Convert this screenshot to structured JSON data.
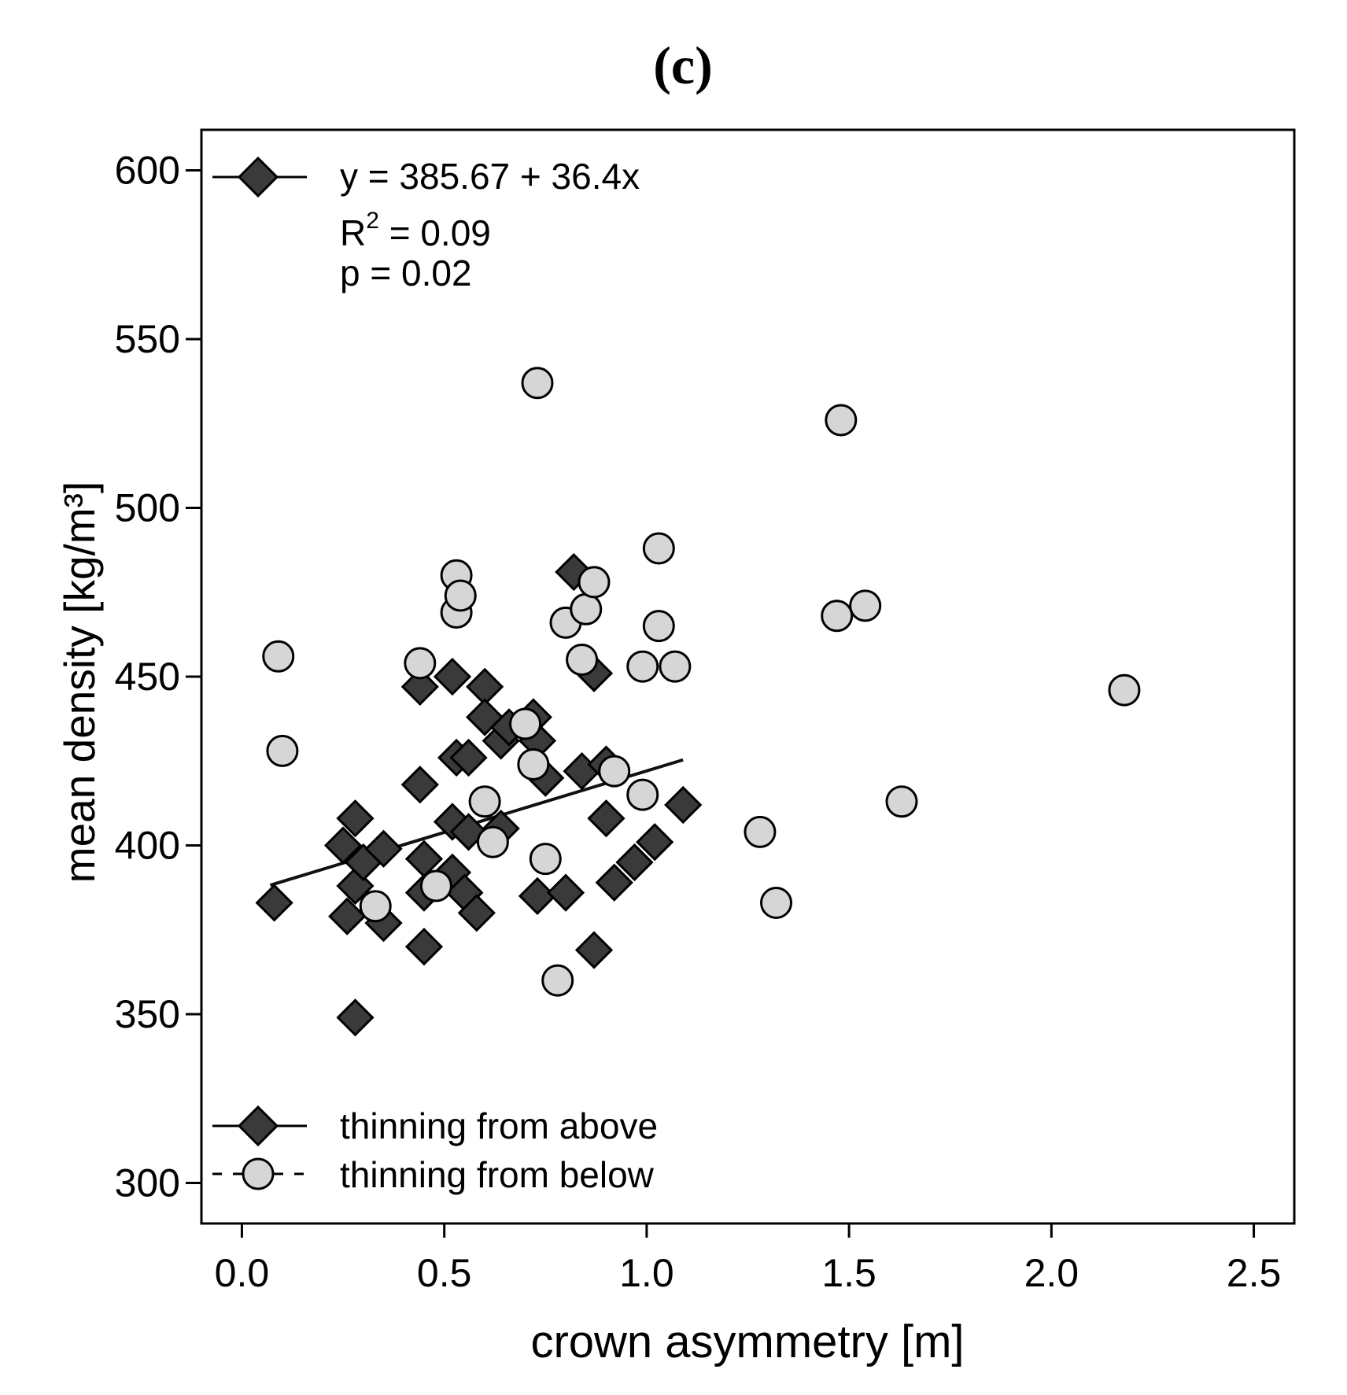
{
  "chart_data": {
    "type": "scatter",
    "panel_label": "(c)",
    "xlabel": "crown asymmetry [m]",
    "ylabel": "mean density [kg/m³]",
    "xlim": [
      -0.1,
      2.6
    ],
    "ylim": [
      288,
      612
    ],
    "x_ticks": [
      0.0,
      0.5,
      1.0,
      1.5,
      2.0,
      2.5
    ],
    "x_tick_labels": [
      "0.0",
      "0.5",
      "1.0",
      "1.5",
      "2.0",
      "2.5"
    ],
    "y_ticks": [
      300,
      350,
      400,
      450,
      500,
      550,
      600
    ],
    "y_tick_labels": [
      "300",
      "350",
      "400",
      "450",
      "500",
      "550",
      "600"
    ],
    "grid": false,
    "annotation": {
      "equation": "y = 385.67 + 36.4x",
      "r2_prefix": "R",
      "r2_sup": "2",
      "r2_value": " = 0.09",
      "p_value": "p = 0.02"
    },
    "legend": {
      "placement": "bottom-left",
      "entries": [
        {
          "label": "thinning from above",
          "marker": "diamond",
          "color": "#3a3a3a",
          "line": "solid"
        },
        {
          "label": "thinning from below",
          "marker": "circle",
          "color": "#d6d6d6",
          "line": "dashed"
        }
      ]
    },
    "series": [
      {
        "name": "thinning from above",
        "marker": "diamond",
        "fill": "#3a3a3a",
        "fit": {
          "intercept": 385.67,
          "slope": 36.4,
          "x_range": [
            0.07,
            1.09
          ]
        },
        "points": [
          [
            0.08,
            383
          ],
          [
            0.25,
            400
          ],
          [
            0.26,
            379
          ],
          [
            0.28,
            408
          ],
          [
            0.28,
            388
          ],
          [
            0.28,
            349
          ],
          [
            0.3,
            395
          ],
          [
            0.35,
            377
          ],
          [
            0.35,
            399
          ],
          [
            0.44,
            447
          ],
          [
            0.44,
            418
          ],
          [
            0.45,
            386
          ],
          [
            0.45,
            370
          ],
          [
            0.45,
            396
          ],
          [
            0.52,
            450
          ],
          [
            0.52,
            407
          ],
          [
            0.52,
            392
          ],
          [
            0.53,
            426
          ],
          [
            0.55,
            386
          ],
          [
            0.56,
            426
          ],
          [
            0.56,
            404
          ],
          [
            0.58,
            380
          ],
          [
            0.6,
            447
          ],
          [
            0.6,
            438
          ],
          [
            0.64,
            405
          ],
          [
            0.64,
            431
          ],
          [
            0.66,
            435
          ],
          [
            0.72,
            438
          ],
          [
            0.73,
            385
          ],
          [
            0.73,
            431
          ],
          [
            0.75,
            420
          ],
          [
            0.8,
            386
          ],
          [
            0.82,
            481
          ],
          [
            0.84,
            422
          ],
          [
            0.87,
            451
          ],
          [
            0.87,
            369
          ],
          [
            0.9,
            424
          ],
          [
            0.9,
            408
          ],
          [
            0.92,
            389
          ],
          [
            0.97,
            395
          ],
          [
            1.02,
            401
          ],
          [
            1.09,
            412
          ]
        ]
      },
      {
        "name": "thinning from below",
        "marker": "circle",
        "fill": "#d6d6d6",
        "points": [
          [
            0.09,
            456
          ],
          [
            0.1,
            428
          ],
          [
            0.33,
            382
          ],
          [
            0.44,
            454
          ],
          [
            0.48,
            388
          ],
          [
            0.53,
            469
          ],
          [
            0.53,
            480
          ],
          [
            0.54,
            474
          ],
          [
            0.6,
            413
          ],
          [
            0.62,
            401
          ],
          [
            0.7,
            436
          ],
          [
            0.72,
            424
          ],
          [
            0.73,
            537
          ],
          [
            0.75,
            396
          ],
          [
            0.78,
            360
          ],
          [
            0.8,
            466
          ],
          [
            0.84,
            455
          ],
          [
            0.85,
            470
          ],
          [
            0.87,
            478
          ],
          [
            0.92,
            422
          ],
          [
            0.99,
            453
          ],
          [
            0.99,
            415
          ],
          [
            1.03,
            488
          ],
          [
            1.03,
            465
          ],
          [
            1.07,
            453
          ],
          [
            1.28,
            404
          ],
          [
            1.32,
            383
          ],
          [
            1.47,
            468
          ],
          [
            1.48,
            526
          ],
          [
            1.54,
            471
          ],
          [
            1.63,
            413
          ],
          [
            2.18,
            446
          ]
        ]
      }
    ]
  }
}
